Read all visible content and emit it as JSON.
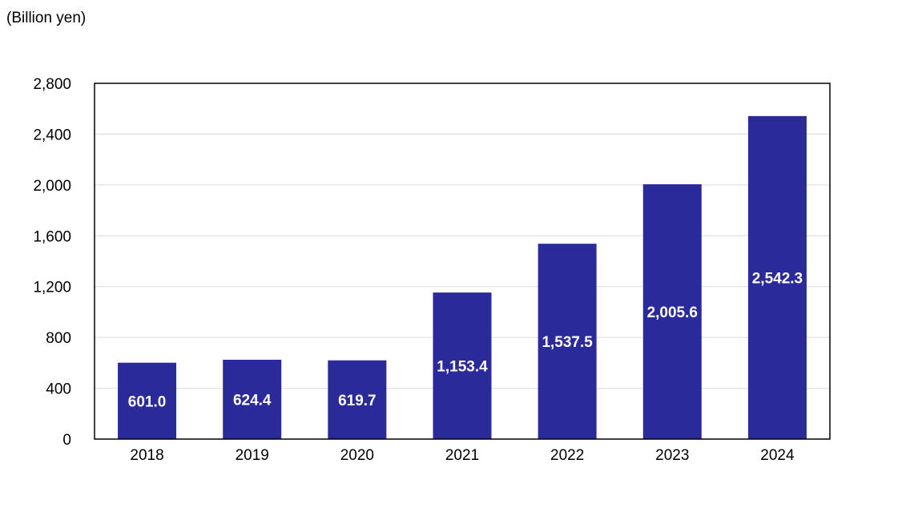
{
  "chart_data": {
    "type": "bar",
    "ylabel": "(Billion yen)",
    "categories": [
      "2018",
      "2019",
      "2020",
      "2021",
      "2022",
      "2023",
      "2024"
    ],
    "values": [
      601.0,
      624.4,
      619.7,
      1153.4,
      1537.5,
      2005.6,
      2542.3
    ],
    "value_labels": [
      "601.0",
      "624.4",
      "619.7",
      "1,153.4",
      "1,537.5",
      "2,005.6",
      "2,542.3"
    ],
    "ylim": [
      0,
      2800
    ],
    "yticks": [
      0,
      400,
      800,
      1200,
      1600,
      2000,
      2400,
      2800
    ],
    "ytick_labels": [
      "0",
      "400",
      "800",
      "1,200",
      "1,600",
      "2,000",
      "2,400",
      "2,800"
    ],
    "grid": true,
    "bar_color": "#2B2A9A",
    "grid_color": "#D9D9D9"
  }
}
